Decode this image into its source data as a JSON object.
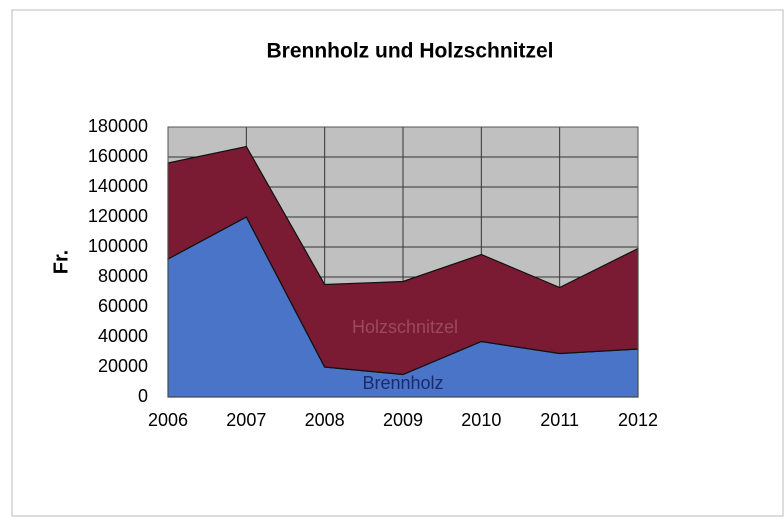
{
  "chart_data": {
    "type": "stacked_area",
    "title": "Brennholz und Holzschnitzel",
    "y_label": "Fr.",
    "categories": [
      "2006",
      "2007",
      "2008",
      "2009",
      "2010",
      "2011",
      "2012"
    ],
    "series": [
      {
        "name": "Brennholz",
        "color": "#4a74c8",
        "values": [
          92000,
          120000,
          20000,
          15000,
          37000,
          29000,
          32000
        ]
      },
      {
        "name": "Holzschnitzel",
        "color": "#7a1a33",
        "values": [
          64000,
          47000,
          55000,
          62000,
          58000,
          44000,
          67000
        ]
      }
    ],
    "ylim": [
      0,
      180000
    ],
    "yticks": [
      0,
      20000,
      40000,
      60000,
      80000,
      100000,
      120000,
      140000,
      160000,
      180000
    ],
    "grid": true
  }
}
